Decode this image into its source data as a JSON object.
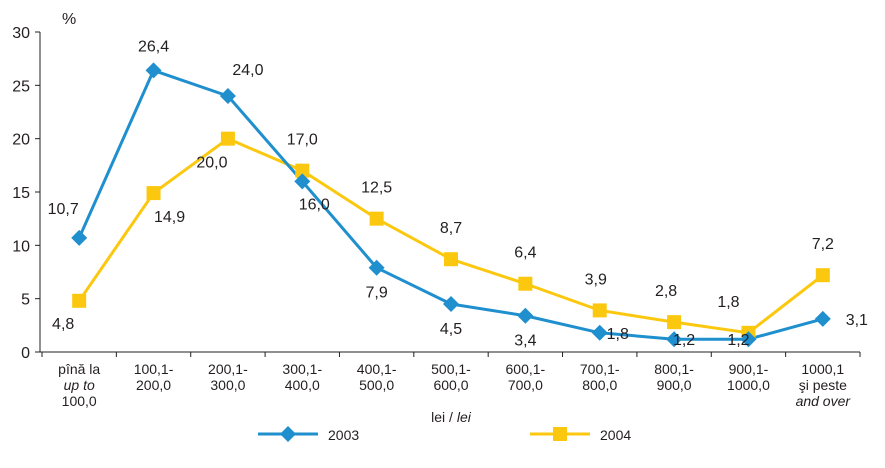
{
  "chart_data": {
    "type": "line",
    "y_unit_label": "%",
    "ylim": [
      0,
      30
    ],
    "yticks": [
      "0",
      "5",
      "10",
      "15",
      "20",
      "25",
      "30"
    ],
    "categories": [
      {
        "line1": "pînă la",
        "line2": "up to",
        "line3": "100,0"
      },
      {
        "line1": "100,1-",
        "line2": "200,0",
        "line3": ""
      },
      {
        "line1": "200,1-",
        "line2": "300,0",
        "line3": ""
      },
      {
        "line1": "300,1-",
        "line2": "400,0",
        "line3": ""
      },
      {
        "line1": "400,1-",
        "line2": "500,0",
        "line3": ""
      },
      {
        "line1": "500,1-",
        "line2": "600,0",
        "line3": ""
      },
      {
        "line1": "600,1-",
        "line2": "700,0",
        "line3": ""
      },
      {
        "line1": "700,1-",
        "line2": "800,0",
        "line3": ""
      },
      {
        "line1": "800,1-",
        "line2": "900,0",
        "line3": ""
      },
      {
        "line1": "900,1-",
        "line2": "1000,0",
        "line3": ""
      },
      {
        "line1": "1000,1",
        "line2": "şi peste",
        "line3": "and over"
      }
    ],
    "xlabel": {
      "main": "lei / ",
      "italic": "lei"
    },
    "series": [
      {
        "name": "2003",
        "color": "#1f8fce",
        "marker": "diamond",
        "values": [
          10.7,
          26.4,
          24.0,
          16.0,
          7.9,
          4.5,
          3.4,
          1.8,
          1.2,
          1.2,
          3.1
        ],
        "labels": [
          "10,7",
          "26,4",
          "24,0",
          "16,0",
          "7,9",
          "4,5",
          "3,4",
          "1,8",
          "1,2",
          "1,2",
          "3,1"
        ]
      },
      {
        "name": "2004",
        "color": "#fcc80f",
        "marker": "square",
        "values": [
          4.8,
          14.9,
          20.0,
          17.0,
          12.5,
          8.7,
          6.4,
          3.9,
          2.8,
          1.8,
          7.2
        ],
        "labels": [
          "4,8",
          "14,9",
          "20,0",
          "17,0",
          "12,5",
          "8,7",
          "6,4",
          "3,9",
          "2,8",
          "1,8",
          "7,2"
        ]
      }
    ],
    "grid": false,
    "legend": "bottom"
  }
}
